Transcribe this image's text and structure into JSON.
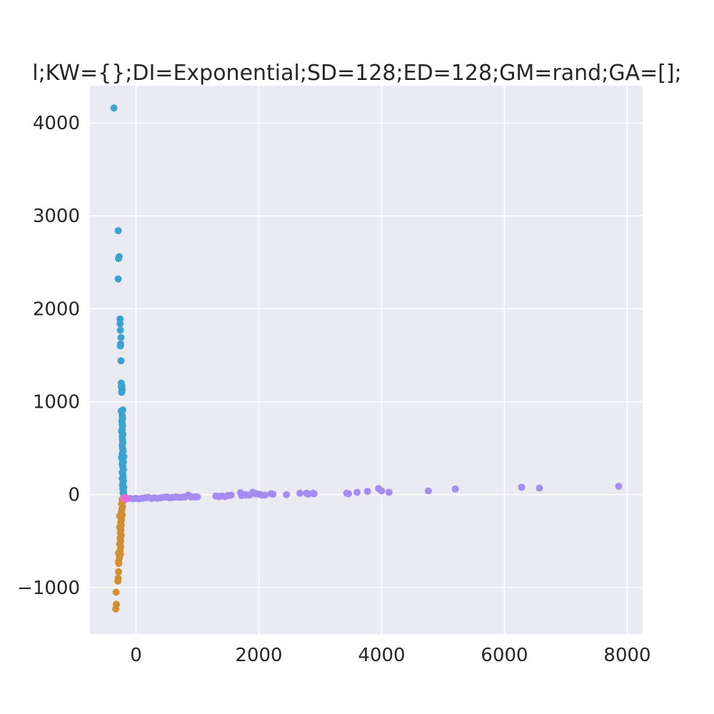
{
  "chart_data": {
    "type": "scatter",
    "title": "l;KW={};DI=Exponential;SD=128;ED=128;GM=rand;GA=[];",
    "xlabel": "",
    "ylabel": "",
    "xlim": [
      -750,
      8250
    ],
    "ylim": [
      -1500,
      4400
    ],
    "grid": true,
    "background": "#eaeaf2",
    "grid_color": "#ffffff",
    "x_ticks": [
      {
        "value": 0,
        "label": "0"
      },
      {
        "value": 2000,
        "label": "2000"
      },
      {
        "value": 4000,
        "label": "4000"
      },
      {
        "value": 6000,
        "label": "6000"
      },
      {
        "value": 8000,
        "label": "8000"
      }
    ],
    "y_ticks": [
      {
        "value": -1000,
        "label": "−1000"
      },
      {
        "value": 0,
        "label": "0"
      },
      {
        "value": 1000,
        "label": "1000"
      },
      {
        "value": 2000,
        "label": "2000"
      },
      {
        "value": 3000,
        "label": "3000"
      },
      {
        "value": 4000,
        "label": "4000"
      }
    ],
    "series": [
      {
        "color": "#3ba3d0",
        "points": [
          [
            -360,
            4160
          ],
          [
            -290,
            2840
          ],
          [
            -275,
            2560
          ],
          [
            -285,
            2540
          ],
          [
            -290,
            2320
          ],
          [
            -260,
            1890
          ],
          [
            -260,
            1840
          ],
          [
            -255,
            1770
          ],
          [
            -245,
            1690
          ],
          [
            -250,
            1620
          ],
          [
            -255,
            1600
          ],
          [
            -245,
            1440
          ],
          [
            -240,
            1200
          ],
          [
            -230,
            1170
          ],
          [
            -240,
            1160
          ],
          [
            -225,
            1130
          ],
          [
            -235,
            1100
          ],
          [
            -240,
            900
          ],
          [
            -215,
            910
          ],
          [
            -225,
            850
          ],
          [
            -220,
            820
          ],
          [
            -230,
            790
          ],
          [
            -225,
            760
          ],
          [
            -220,
            740
          ],
          [
            -225,
            700
          ],
          [
            -235,
            680
          ],
          [
            -215,
            650
          ],
          [
            -225,
            620
          ],
          [
            -220,
            590
          ],
          [
            -215,
            560
          ],
          [
            -225,
            530
          ],
          [
            -220,
            500
          ],
          [
            -210,
            470
          ],
          [
            -225,
            440
          ],
          [
            -200,
            410
          ],
          [
            -215,
            410
          ],
          [
            -235,
            400
          ],
          [
            -220,
            370
          ],
          [
            -205,
            350
          ],
          [
            -225,
            330
          ],
          [
            -215,
            300
          ],
          [
            -205,
            270
          ],
          [
            -225,
            240
          ],
          [
            -215,
            220
          ],
          [
            -210,
            190
          ],
          [
            -225,
            170
          ],
          [
            -205,
            150
          ],
          [
            -215,
            120
          ],
          [
            -220,
            100
          ],
          [
            -200,
            80
          ],
          [
            -215,
            60
          ],
          [
            -205,
            40
          ],
          [
            -210,
            20
          ],
          [
            -200,
            5
          ]
        ]
      },
      {
        "color": "#d08f30",
        "points": [
          [
            -330,
            -1230
          ],
          [
            -320,
            -1180
          ],
          [
            -325,
            -1050
          ],
          [
            -295,
            -930
          ],
          [
            -290,
            -900
          ],
          [
            -285,
            -830
          ],
          [
            -280,
            -740
          ],
          [
            -285,
            -720
          ],
          [
            -270,
            -680
          ],
          [
            -285,
            -630
          ],
          [
            -255,
            -640
          ],
          [
            -260,
            -600
          ],
          [
            -250,
            -560
          ],
          [
            -265,
            -530
          ],
          [
            -250,
            -500
          ],
          [
            -260,
            -470
          ],
          [
            -240,
            -440
          ],
          [
            -255,
            -410
          ],
          [
            -245,
            -380
          ],
          [
            -265,
            -350
          ],
          [
            -240,
            -330
          ],
          [
            -250,
            -300
          ],
          [
            -235,
            -270
          ],
          [
            -250,
            -240
          ],
          [
            -225,
            -220
          ],
          [
            -240,
            -190
          ],
          [
            -230,
            -160
          ],
          [
            -220,
            -130
          ],
          [
            -235,
            -100
          ],
          [
            -215,
            -70
          ],
          [
            -265,
            -230
          ],
          [
            -225,
            -50
          ]
        ]
      },
      {
        "color": "#a58cf0",
        "points": [
          [
            -200,
            -40
          ],
          [
            -150,
            -45
          ],
          [
            -100,
            -40
          ],
          [
            -50,
            -45
          ],
          [
            0,
            -40
          ],
          [
            50,
            -45
          ],
          [
            100,
            -40
          ],
          [
            150,
            -35
          ],
          [
            200,
            -30
          ],
          [
            250,
            -40
          ],
          [
            300,
            -35
          ],
          [
            350,
            -40
          ],
          [
            400,
            -35
          ],
          [
            450,
            -30
          ],
          [
            500,
            -25
          ],
          [
            550,
            -35
          ],
          [
            600,
            -30
          ],
          [
            650,
            -25
          ],
          [
            700,
            -30
          ],
          [
            750,
            -28
          ],
          [
            800,
            -25
          ],
          [
            850,
            -5
          ],
          [
            900,
            -25
          ],
          [
            950,
            -25
          ],
          [
            1000,
            -25
          ],
          [
            1300,
            -15
          ],
          [
            1350,
            -20
          ],
          [
            1400,
            -15
          ],
          [
            1450,
            -20
          ],
          [
            1500,
            -10
          ],
          [
            1550,
            -5
          ],
          [
            1700,
            20
          ],
          [
            1720,
            -10
          ],
          [
            1780,
            0
          ],
          [
            1800,
            -5
          ],
          [
            1850,
            -5
          ],
          [
            1900,
            25
          ],
          [
            1950,
            10
          ],
          [
            2000,
            5
          ],
          [
            2050,
            -5
          ],
          [
            2100,
            -5
          ],
          [
            2200,
            10
          ],
          [
            2230,
            5
          ],
          [
            2450,
            0
          ],
          [
            2670,
            15
          ],
          [
            2780,
            15
          ],
          [
            2800,
            5
          ],
          [
            2880,
            15
          ],
          [
            2900,
            10
          ],
          [
            3430,
            15
          ],
          [
            3460,
            10
          ],
          [
            3600,
            25
          ],
          [
            3770,
            35
          ],
          [
            3950,
            65
          ],
          [
            4000,
            40
          ],
          [
            4120,
            25
          ],
          [
            4760,
            40
          ],
          [
            5200,
            60
          ],
          [
            6280,
            80
          ],
          [
            6570,
            70
          ],
          [
            7860,
            90
          ]
        ]
      },
      {
        "color": "#e86ad8",
        "points": [
          [
            -190,
            -40
          ],
          [
            -180,
            -45
          ],
          [
            -170,
            -35
          ],
          [
            -175,
            -50
          ],
          [
            -160,
            -40
          ],
          [
            -185,
            -30
          ],
          [
            -165,
            -45
          ]
        ]
      }
    ]
  }
}
